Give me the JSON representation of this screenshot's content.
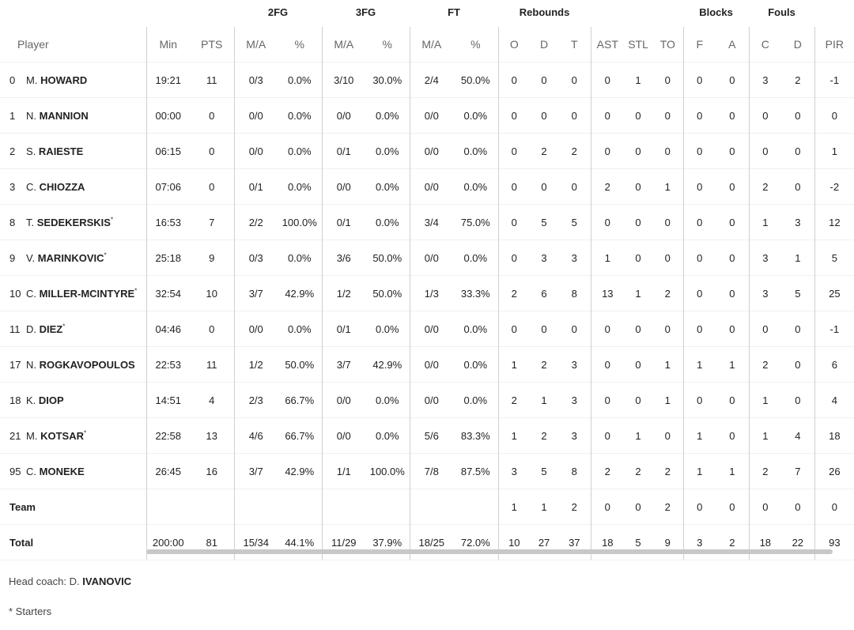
{
  "groups": {
    "fg2": "2FG",
    "fg3": "3FG",
    "ft": "FT",
    "reb": "Rebounds",
    "blk": "Blocks",
    "fouls": "Fouls"
  },
  "columns": [
    "Player",
    "Min",
    "PTS",
    "M/A",
    "%",
    "M/A",
    "%",
    "M/A",
    "%",
    "O",
    "D",
    "T",
    "AST",
    "STL",
    "TO",
    "F",
    "A",
    "C",
    "D",
    "PIR"
  ],
  "players": [
    {
      "no": "0",
      "first": "M.",
      "last": "HOWARD",
      "starter": false,
      "stats": [
        "19:21",
        "11",
        "0/3",
        "0.0%",
        "3/10",
        "30.0%",
        "2/4",
        "50.0%",
        "0",
        "0",
        "0",
        "0",
        "1",
        "0",
        "0",
        "0",
        "3",
        "2",
        "-1"
      ]
    },
    {
      "no": "1",
      "first": "N.",
      "last": "MANNION",
      "starter": false,
      "stats": [
        "00:00",
        "0",
        "0/0",
        "0.0%",
        "0/0",
        "0.0%",
        "0/0",
        "0.0%",
        "0",
        "0",
        "0",
        "0",
        "0",
        "0",
        "0",
        "0",
        "0",
        "0",
        "0"
      ]
    },
    {
      "no": "2",
      "first": "S.",
      "last": "RAIESTE",
      "starter": false,
      "stats": [
        "06:15",
        "0",
        "0/0",
        "0.0%",
        "0/1",
        "0.0%",
        "0/0",
        "0.0%",
        "0",
        "2",
        "2",
        "0",
        "0",
        "0",
        "0",
        "0",
        "0",
        "0",
        "1"
      ]
    },
    {
      "no": "3",
      "first": "C.",
      "last": "CHIOZZA",
      "starter": false,
      "stats": [
        "07:06",
        "0",
        "0/1",
        "0.0%",
        "0/0",
        "0.0%",
        "0/0",
        "0.0%",
        "0",
        "0",
        "0",
        "2",
        "0",
        "1",
        "0",
        "0",
        "2",
        "0",
        "-2"
      ]
    },
    {
      "no": "8",
      "first": "T.",
      "last": "SEDEKERSKIS",
      "starter": true,
      "stats": [
        "16:53",
        "7",
        "2/2",
        "100.0%",
        "0/1",
        "0.0%",
        "3/4",
        "75.0%",
        "0",
        "5",
        "5",
        "0",
        "0",
        "0",
        "0",
        "0",
        "1",
        "3",
        "12"
      ]
    },
    {
      "no": "9",
      "first": "V.",
      "last": "MARINKOVIC",
      "starter": true,
      "stats": [
        "25:18",
        "9",
        "0/3",
        "0.0%",
        "3/6",
        "50.0%",
        "0/0",
        "0.0%",
        "0",
        "3",
        "3",
        "1",
        "0",
        "0",
        "0",
        "0",
        "3",
        "1",
        "5"
      ]
    },
    {
      "no": "10",
      "first": "C.",
      "last": "MILLER-MCINTYRE",
      "starter": true,
      "stats": [
        "32:54",
        "10",
        "3/7",
        "42.9%",
        "1/2",
        "50.0%",
        "1/3",
        "33.3%",
        "2",
        "6",
        "8",
        "13",
        "1",
        "2",
        "0",
        "0",
        "3",
        "5",
        "25"
      ]
    },
    {
      "no": "11",
      "first": "D.",
      "last": "DIEZ",
      "starter": true,
      "stats": [
        "04:46",
        "0",
        "0/0",
        "0.0%",
        "0/1",
        "0.0%",
        "0/0",
        "0.0%",
        "0",
        "0",
        "0",
        "0",
        "0",
        "0",
        "0",
        "0",
        "0",
        "0",
        "-1"
      ]
    },
    {
      "no": "17",
      "first": "N.",
      "last": "ROGKAVOPOULOS",
      "starter": false,
      "stats": [
        "22:53",
        "11",
        "1/2",
        "50.0%",
        "3/7",
        "42.9%",
        "0/0",
        "0.0%",
        "1",
        "2",
        "3",
        "0",
        "0",
        "1",
        "1",
        "1",
        "2",
        "0",
        "6"
      ]
    },
    {
      "no": "18",
      "first": "K.",
      "last": "DIOP",
      "starter": false,
      "stats": [
        "14:51",
        "4",
        "2/3",
        "66.7%",
        "0/0",
        "0.0%",
        "0/0",
        "0.0%",
        "2",
        "1",
        "3",
        "0",
        "0",
        "1",
        "0",
        "0",
        "1",
        "0",
        "4"
      ]
    },
    {
      "no": "21",
      "first": "M.",
      "last": "KOTSAR",
      "starter": true,
      "stats": [
        "22:58",
        "13",
        "4/6",
        "66.7%",
        "0/0",
        "0.0%",
        "5/6",
        "83.3%",
        "1",
        "2",
        "3",
        "0",
        "1",
        "0",
        "1",
        "0",
        "1",
        "4",
        "18"
      ]
    },
    {
      "no": "95",
      "first": "C.",
      "last": "MONEKE",
      "starter": false,
      "stats": [
        "26:45",
        "16",
        "3/7",
        "42.9%",
        "1/1",
        "100.0%",
        "7/8",
        "87.5%",
        "3",
        "5",
        "8",
        "2",
        "2",
        "2",
        "1",
        "1",
        "2",
        "7",
        "26"
      ]
    }
  ],
  "team": {
    "label": "Team",
    "stats": [
      "",
      "",
      "",
      "",
      "",
      "",
      "",
      "",
      "1",
      "1",
      "2",
      "0",
      "0",
      "2",
      "0",
      "0",
      "0",
      "0",
      "0"
    ]
  },
  "total": {
    "label": "Total",
    "stats": [
      "200:00",
      "81",
      "15/34",
      "44.1%",
      "11/29",
      "37.9%",
      "18/25",
      "72.0%",
      "10",
      "27",
      "37",
      "18",
      "5",
      "9",
      "3",
      "2",
      "18",
      "22",
      "93"
    ]
  },
  "coach": {
    "label": "Head coach:",
    "first": "D.",
    "last": "IVANOVIC"
  },
  "starters_note": "* Starters",
  "starter_mark": "*"
}
